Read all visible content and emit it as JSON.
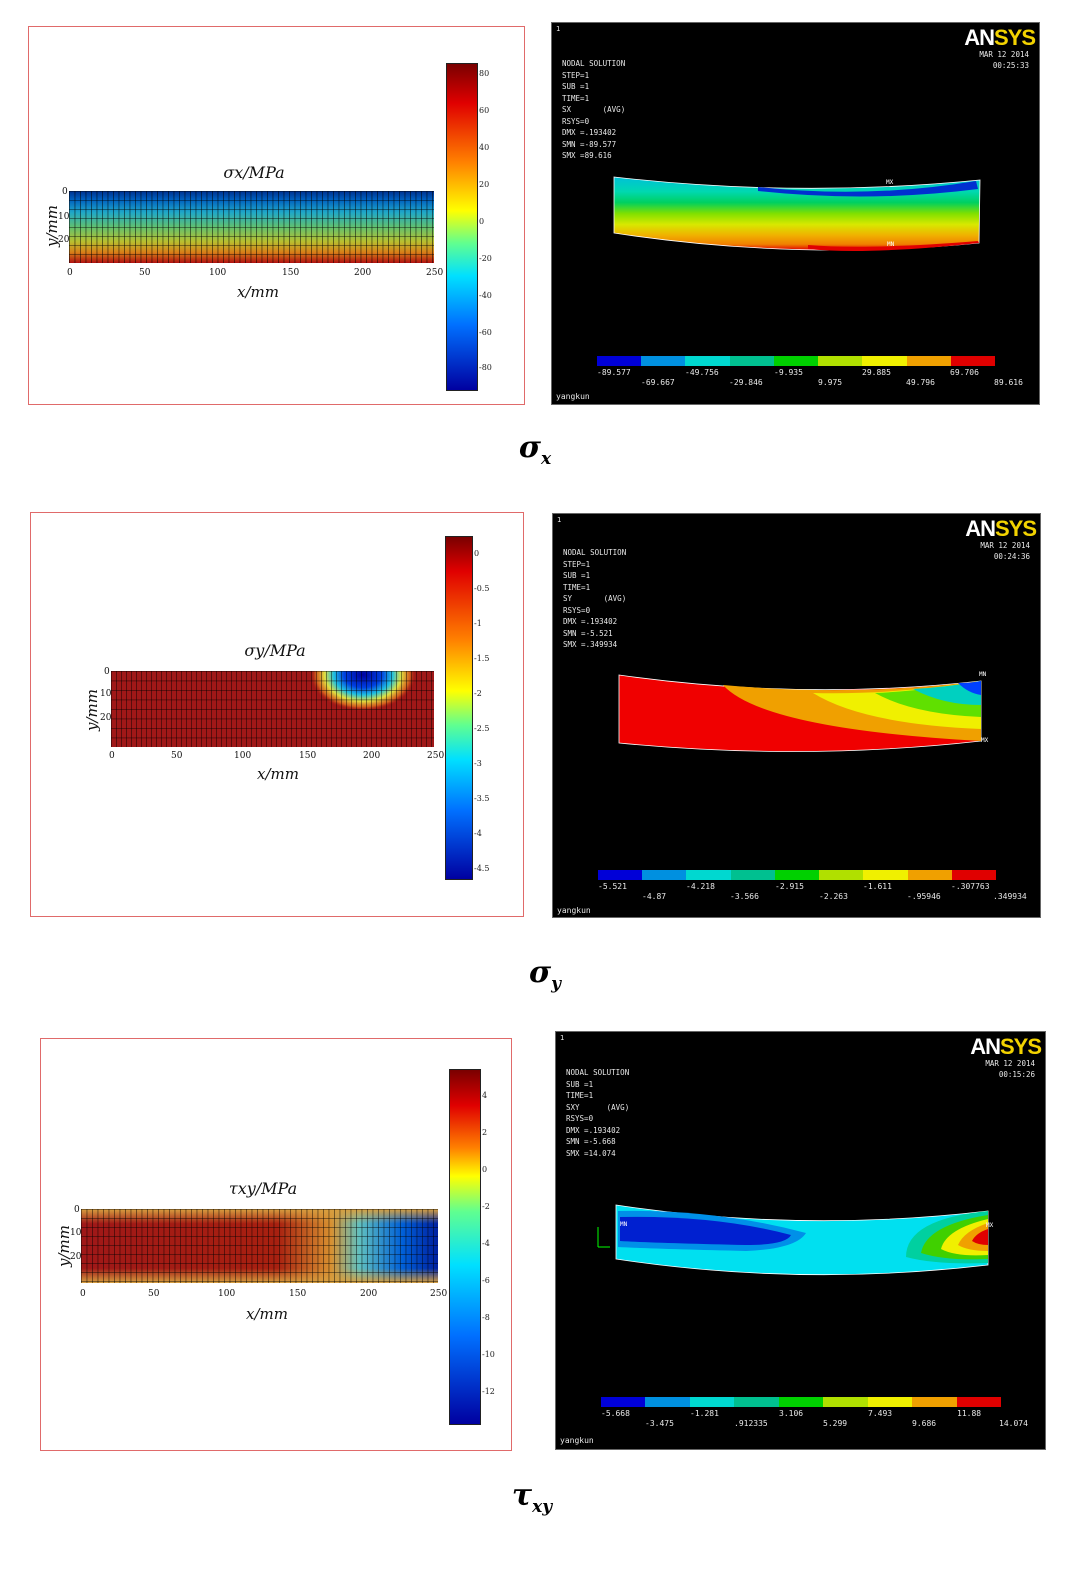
{
  "figures": [
    {
      "caption_symbol": "σ",
      "caption_sub": "x",
      "matlab": {
        "title": "σx/MPa",
        "xlabel": "x/mm",
        "ylabel": "y/mm",
        "x_ticks": [
          "0",
          "50",
          "100",
          "150",
          "200",
          "250"
        ],
        "y_ticks": [
          "0",
          "10",
          "20"
        ],
        "colorbar_ticks": [
          "80",
          "60",
          "40",
          "20",
          "0",
          "-20",
          "-40",
          "-60",
          "-80"
        ]
      },
      "ansys": {
        "panel_number": "1",
        "info_lines": [
          "NODAL SOLUTION",
          "",
          "STEP=1",
          "SUB =1",
          "TIME=1",
          "SX       (AVG)",
          "RSYS=0",
          "DMX =.193402",
          "SMN =-89.577",
          "SMX =89.616"
        ],
        "date": "MAR 12 2014",
        "time": "00:25:33",
        "legend_upper": [
          "-89.577",
          "-49.756",
          "-9.935",
          "29.885",
          "69.706"
        ],
        "legend_lower": [
          "-69.667",
          "-29.846",
          "9.975",
          "49.796",
          "89.616"
        ],
        "user": "yangkun",
        "mx_label": "MX",
        "mn_label": "MN"
      }
    },
    {
      "caption_symbol": "σ",
      "caption_sub": "y",
      "matlab": {
        "title": "σy/MPa",
        "xlabel": "x/mm",
        "ylabel": "y/mm",
        "x_ticks": [
          "0",
          "50",
          "100",
          "150",
          "200",
          "250"
        ],
        "y_ticks": [
          "0",
          "10",
          "20"
        ],
        "colorbar_ticks": [
          "0",
          "-0.5",
          "-1",
          "-1.5",
          "-2",
          "-2.5",
          "-3",
          "-3.5",
          "-4",
          "-4.5"
        ]
      },
      "ansys": {
        "panel_number": "1",
        "info_lines": [
          "NODAL SOLUTION",
          "",
          "STEP=1",
          "SUB =1",
          "TIME=1",
          "SY       (AVG)",
          "RSYS=0",
          "DMX =.193402",
          "SMN =-5.521",
          "SMX =.349934"
        ],
        "date": "MAR 12 2014",
        "time": "00:24:36",
        "legend_upper": [
          "-5.521",
          "-4.218",
          "-2.915",
          "-1.611",
          "-.307763"
        ],
        "legend_lower": [
          "-4.87",
          "-3.566",
          "-2.263",
          "-.95946",
          ".349934"
        ],
        "user": "yangkun",
        "mx_label": "MX",
        "mn_label": "MN"
      }
    },
    {
      "caption_symbol": "τ",
      "caption_sub": "xy",
      "matlab": {
        "title": "τxy/MPa",
        "xlabel": "x/mm",
        "ylabel": "y/mm",
        "x_ticks": [
          "0",
          "50",
          "100",
          "150",
          "200",
          "250"
        ],
        "y_ticks": [
          "0",
          "10",
          "20"
        ],
        "colorbar_ticks": [
          "4",
          "2",
          "0",
          "-2",
          "-4",
          "-6",
          "-8",
          "-10",
          "-12"
        ]
      },
      "ansys": {
        "panel_number": "1",
        "info_lines": [
          "NODAL SOLUTION",
          "",
          "SUB =1",
          "TIME=1",
          "SXY      (AVG)",
          "RSYS=0",
          "DMX =.193402",
          "SMN =-5.668",
          "SMX =14.074"
        ],
        "date": "MAR 12 2014",
        "time": "00:15:26",
        "legend_upper": [
          "-5.668",
          "-1.281",
          "3.106",
          "7.493",
          "11.88"
        ],
        "legend_lower": [
          "-3.475",
          ".912335",
          "5.299",
          "9.686",
          "14.074"
        ],
        "user": "yangkun",
        "mx_label": "MX",
        "mn_label": "MN"
      }
    }
  ],
  "ansys_logo": {
    "an": "AN",
    "sys": "SYS"
  },
  "legend_colors": [
    "#0000d8",
    "#0090e0",
    "#00d8d0",
    "#00c090",
    "#00d000",
    "#b0e000",
    "#f0f000",
    "#f0a000",
    "#e00000"
  ]
}
